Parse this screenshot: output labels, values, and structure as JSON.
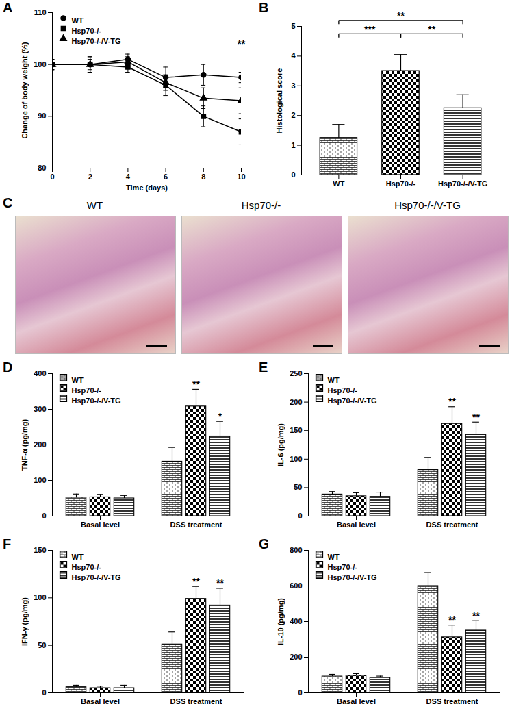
{
  "chart_data": [
    {
      "panel": "A",
      "type": "line",
      "x_label": "Time (days)",
      "y_label": "Change of body weight (%)",
      "x": [
        0,
        2,
        4,
        6,
        8,
        10
      ],
      "xlim": [
        0,
        10
      ],
      "xticks": [
        0,
        2,
        4,
        6,
        8,
        10
      ],
      "ylim": [
        80,
        110
      ],
      "yticks": [
        80,
        90,
        100,
        110
      ],
      "legend": "upper left",
      "series": [
        {
          "name": "WT",
          "color": "#000000",
          "marker": "circle",
          "values": [
            100,
            100,
            101,
            97.5,
            98,
            97.5
          ],
          "errors": [
            1,
            1.5,
            1,
            2,
            2,
            1
          ]
        },
        {
          "name": "Hsp70-/-",
          "color": "#000000",
          "marker": "square",
          "values": [
            100,
            100,
            99.5,
            96,
            90,
            87
          ],
          "errors": [
            1,
            1.5,
            1,
            2,
            2,
            2.5
          ]
        },
        {
          "name": "Hsp70-/-/V-TG",
          "color": "#000000",
          "marker": "triangle",
          "values": [
            100,
            100,
            100.5,
            96.5,
            93.5,
            93
          ],
          "errors": [
            1,
            1,
            1,
            1.5,
            2,
            2.5
          ]
        }
      ],
      "annotations": [
        {
          "text": "**",
          "x": 10,
          "y": 104
        }
      ]
    },
    {
      "panel": "B",
      "type": "bar",
      "y_label": "Histological score",
      "categories": [
        "WT",
        "Hsp70-/-",
        "Hsp70-/-/V-TG"
      ],
      "values": [
        1.25,
        3.5,
        2.25
      ],
      "errors": [
        0.45,
        0.55,
        0.45
      ],
      "color": "#000000",
      "ylim": [
        0,
        5
      ],
      "yticks": [
        0,
        1,
        2,
        3,
        4,
        5
      ],
      "significance": [
        {
          "from": "WT",
          "to": "Hsp70-/-",
          "text": "***",
          "y": 4.75
        },
        {
          "from": "Hsp70-/-",
          "to": "Hsp70-/-/V-TG",
          "text": "**",
          "y": 4.75
        },
        {
          "from": "WT",
          "to": "Hsp70-/-/V-TG",
          "text": "**",
          "y": 5.2
        }
      ]
    },
    {
      "panel": "C",
      "type": "image",
      "titles": [
        "WT",
        "Hsp70-/-",
        "Hsp70-/-/V-TG"
      ]
    },
    {
      "panel": "D",
      "type": "bar",
      "y_label": "TNF-α (pg/mg)",
      "categories": [
        "Basal level",
        "DSS treatment"
      ],
      "ylim": [
        0,
        400
      ],
      "yticks": [
        0,
        100,
        200,
        300,
        400
      ],
      "legend": "upper left",
      "series": [
        {
          "name": "WT",
          "color": "#000000",
          "values": [
            52,
            153
          ],
          "errors": [
            10,
            40
          ],
          "significance": [
            null,
            null
          ]
        },
        {
          "name": "Hsp70-/-",
          "color": "#000000",
          "values": [
            53,
            308
          ],
          "errors": [
            8,
            48
          ],
          "significance": [
            null,
            "**"
          ]
        },
        {
          "name": "Hsp70-/-/V-TG",
          "color": "#000000",
          "values": [
            50,
            224
          ],
          "errors": [
            8,
            42
          ],
          "significance": [
            null,
            "*"
          ]
        }
      ]
    },
    {
      "panel": "E",
      "type": "bar",
      "y_label": "IL-6 (pg/mg)",
      "categories": [
        "Basal level",
        "DSS treatment"
      ],
      "ylim": [
        0,
        250
      ],
      "yticks": [
        0,
        50,
        100,
        150,
        200,
        250
      ],
      "legend": "upper left",
      "series": [
        {
          "name": "WT",
          "color": "#000000",
          "values": [
            38,
            81
          ],
          "errors": [
            5,
            22
          ],
          "significance": [
            null,
            null
          ]
        },
        {
          "name": "Hsp70-/-",
          "color": "#000000",
          "values": [
            35,
            162
          ],
          "errors": [
            6,
            30
          ],
          "significance": [
            null,
            "**"
          ]
        },
        {
          "name": "Hsp70-/-/V-TG",
          "color": "#000000",
          "values": [
            34,
            143
          ],
          "errors": [
            8,
            22
          ],
          "significance": [
            null,
            "**"
          ]
        }
      ]
    },
    {
      "panel": "F",
      "type": "bar",
      "y_label": "IFN-γ (pg/mg)",
      "categories": [
        "Basal level",
        "DSS treatment"
      ],
      "ylim": [
        0,
        150
      ],
      "yticks": [
        0,
        50,
        100,
        150
      ],
      "legend": "upper left",
      "series": [
        {
          "name": "WT",
          "color": "#000000",
          "values": [
            6,
            51
          ],
          "errors": [
            2,
            13
          ],
          "significance": [
            null,
            null
          ]
        },
        {
          "name": "Hsp70-/-",
          "color": "#000000",
          "values": [
            5,
            99
          ],
          "errors": [
            2,
            13
          ],
          "significance": [
            null,
            "**"
          ]
        },
        {
          "name": "Hsp70-/-/V-TG",
          "color": "#000000",
          "values": [
            5,
            92
          ],
          "errors": [
            3,
            18
          ],
          "significance": [
            null,
            "**"
          ]
        }
      ]
    },
    {
      "panel": "G",
      "type": "bar",
      "y_label": "IL-10 (pg/mg)",
      "categories": [
        "Basal level",
        "DSS treatment"
      ],
      "ylim": [
        0,
        800
      ],
      "yticks": [
        0,
        200,
        400,
        600,
        800
      ],
      "legend": "upper left",
      "series": [
        {
          "name": "WT",
          "color": "#000000",
          "values": [
            92,
            600
          ],
          "errors": [
            12,
            75
          ],
          "significance": [
            null,
            null
          ]
        },
        {
          "name": "Hsp70-/-",
          "color": "#000000",
          "values": [
            96,
            312
          ],
          "errors": [
            12,
            68
          ],
          "significance": [
            null,
            "**"
          ]
        },
        {
          "name": "Hsp70-/-/V-TG",
          "color": "#000000",
          "values": [
            84,
            350
          ],
          "errors": [
            10,
            55
          ],
          "significance": [
            null,
            "**"
          ]
        }
      ]
    }
  ]
}
